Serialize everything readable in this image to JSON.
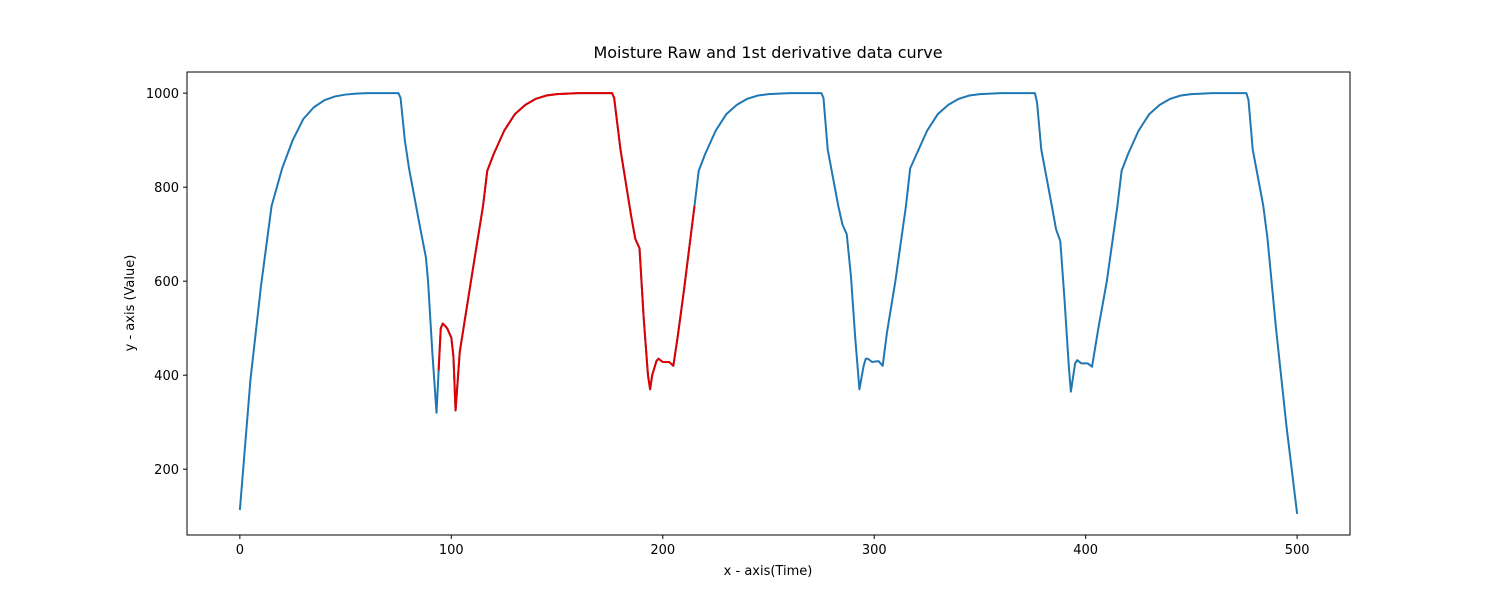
{
  "chart_data": {
    "type": "line",
    "title": "Moisture Raw and 1st derivative data curve",
    "xlabel": "x - axis(Time)",
    "ylabel": "y - axis (Value)",
    "xlim": [
      -25,
      525
    ],
    "xticks": [
      0,
      100,
      200,
      300,
      400,
      500
    ],
    "ylim": [
      60,
      1045
    ],
    "yticks": [
      200,
      400,
      600,
      800,
      1000
    ],
    "series": [
      {
        "color": "#1f77b4",
        "x": [
          0,
          5,
          10,
          15,
          20,
          25,
          30,
          35,
          40,
          45,
          50,
          55,
          60,
          75,
          76,
          78,
          80,
          85,
          88,
          89,
          91,
          93,
          94,
          95,
          96,
          98,
          100,
          101,
          102,
          104,
          110,
          115,
          117,
          120,
          125,
          130,
          135,
          140,
          145,
          150,
          155,
          160,
          176,
          177,
          180,
          185,
          187,
          189,
          191,
          193,
          194,
          195,
          197,
          198,
          200,
          203,
          205,
          207,
          210,
          215,
          217,
          220,
          225,
          230,
          235,
          240,
          245,
          250,
          255,
          260,
          275,
          276,
          278,
          283,
          285,
          287,
          289,
          291,
          293,
          295,
          296,
          297,
          299,
          302,
          304,
          306,
          310,
          315,
          317,
          320,
          325,
          330,
          335,
          340,
          345,
          350,
          355,
          360,
          376,
          377,
          379,
          384,
          386,
          388,
          390,
          392,
          393,
          395,
          396,
          398,
          401,
          403,
          406,
          410,
          415,
          417,
          420,
          425,
          430,
          435,
          440,
          445,
          450,
          455,
          460,
          476,
          477,
          479,
          484,
          486,
          490,
          495,
          500
        ],
        "values": [
          113,
          390,
          590,
          760,
          840,
          900,
          945,
          970,
          985,
          993,
          997,
          999,
          1000,
          1000,
          990,
          900,
          840,
          720,
          650,
          600,
          450,
          320,
          410,
          500,
          510,
          500,
          480,
          440,
          325,
          450,
          620,
          760,
          835,
          870,
          920,
          955,
          975,
          988,
          995,
          998,
          999,
          1000,
          1000,
          990,
          880,
          740,
          690,
          670,
          520,
          400,
          370,
          400,
          430,
          435,
          428,
          428,
          420,
          480,
          580,
          760,
          835,
          870,
          920,
          955,
          975,
          988,
          995,
          998,
          999,
          1000,
          1000,
          990,
          880,
          760,
          720,
          700,
          610,
          480,
          370,
          420,
          435,
          435,
          428,
          430,
          420,
          490,
          600,
          760,
          840,
          870,
          920,
          955,
          975,
          988,
          995,
          998,
          999,
          1000,
          1000,
          980,
          880,
          760,
          710,
          685,
          560,
          420,
          365,
          425,
          432,
          425,
          425,
          418,
          500,
          600,
          760,
          835,
          870,
          920,
          955,
          975,
          988,
          995,
          998,
          999,
          1000,
          1000,
          985,
          880,
          760,
          690,
          500,
          290,
          105
        ]
      },
      {
        "color": "#e00000",
        "x": [
          94,
          95,
          96,
          98,
          100,
          101,
          102,
          104,
          110,
          115,
          117,
          120,
          125,
          130,
          135,
          140,
          145,
          150,
          155,
          160,
          176,
          177,
          180,
          185,
          187,
          189,
          191,
          193,
          194,
          195,
          197,
          198,
          200,
          203,
          205,
          207,
          210,
          215
        ],
        "values": [
          410,
          500,
          510,
          500,
          480,
          440,
          325,
          450,
          620,
          760,
          835,
          870,
          920,
          955,
          975,
          988,
          995,
          998,
          999,
          1000,
          1000,
          990,
          880,
          740,
          690,
          670,
          520,
          400,
          370,
          400,
          430,
          435,
          428,
          428,
          420,
          480,
          580,
          760
        ]
      }
    ]
  }
}
